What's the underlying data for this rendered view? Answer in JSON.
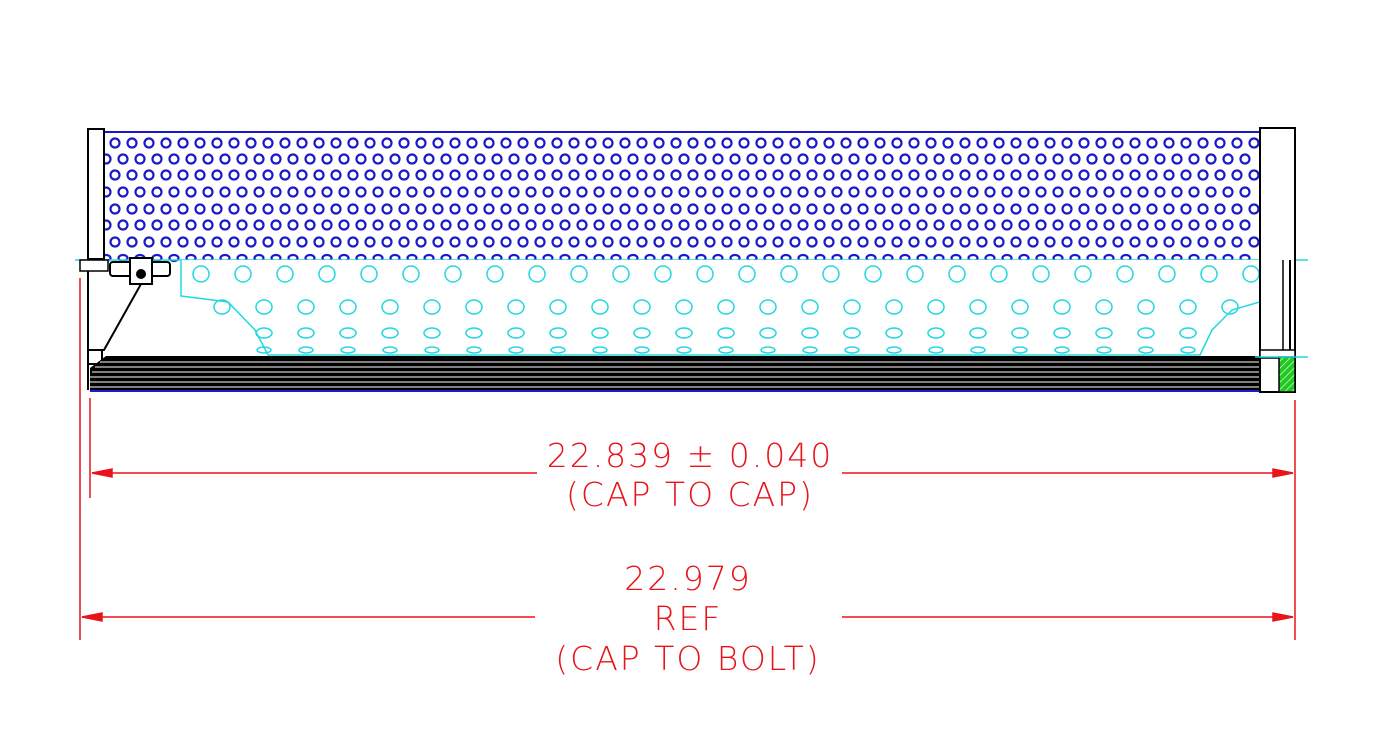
{
  "colors": {
    "dimension": "#e8141c",
    "outer_perforation": "#1a1ac8",
    "inner_perforation": "#22d8e0",
    "outline": "#000000",
    "seal": "#22c822"
  },
  "dimensions": {
    "cap_to_cap": {
      "value": "22.839 ± 0.040",
      "note": "(CAP TO CAP)"
    },
    "cap_to_bolt": {
      "value": "22.979",
      "ref": "REF",
      "note": "(CAP TO BOLT)"
    }
  }
}
